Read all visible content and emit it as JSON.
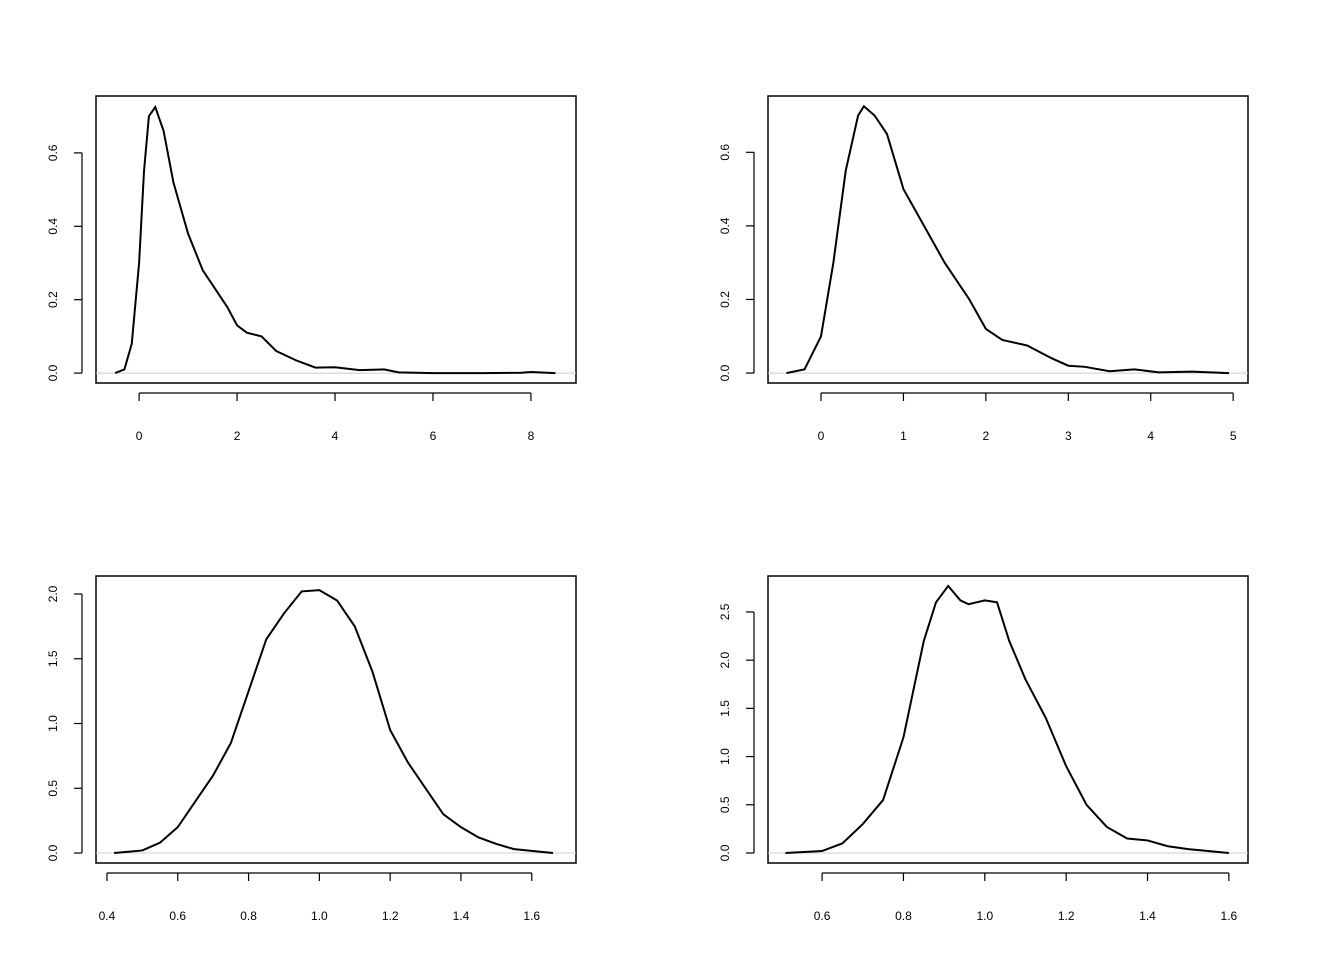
{
  "chart_data": [
    {
      "type": "line",
      "x": [
        -0.49,
        -0.3,
        -0.15,
        0,
        0.1,
        0.2,
        0.33,
        0.5,
        0.7,
        1.0,
        1.3,
        1.6,
        1.8,
        2.0,
        2.2,
        2.5,
        2.8,
        3.2,
        3.6,
        4.0,
        4.5,
        5.0,
        5.3,
        6,
        7,
        7.8,
        8.0,
        8.5
      ],
      "values": [
        0,
        0.01,
        0.08,
        0.3,
        0.55,
        0.7,
        0.725,
        0.66,
        0.52,
        0.38,
        0.28,
        0.22,
        0.18,
        0.13,
        0.11,
        0.1,
        0.06,
        0.035,
        0.015,
        0.016,
        0.008,
        0.01,
        0.002,
        0,
        0,
        0.001,
        0.003,
        0
      ],
      "xlim": [
        -0.88,
        8.92
      ],
      "ylim": [
        -0.027,
        0.755
      ],
      "xticks": [
        0,
        2,
        4,
        6,
        8
      ],
      "yticks": [
        {
          "value": 0,
          "label": "0.0"
        },
        0.2,
        0.4,
        0.6
      ],
      "color": "#000000"
    },
    {
      "type": "line",
      "x": [
        -0.42,
        -0.2,
        0,
        0.15,
        0.3,
        0.45,
        0.52,
        0.65,
        0.8,
        1.0,
        1.2,
        1.5,
        1.8,
        2.0,
        2.2,
        2.5,
        2.8,
        3.0,
        3.2,
        3.5,
        3.8,
        4.1,
        4.5,
        4.95
      ],
      "values": [
        0,
        0.01,
        0.1,
        0.3,
        0.55,
        0.7,
        0.725,
        0.7,
        0.65,
        0.5,
        0.42,
        0.3,
        0.2,
        0.12,
        0.09,
        0.075,
        0.04,
        0.02,
        0.017,
        0.005,
        0.01,
        0.002,
        0.004,
        0
      ],
      "xlim": [
        -0.643,
        5.18
      ],
      "ylim": [
        -0.027,
        0.753
      ],
      "xticks": [
        0,
        1,
        2,
        3,
        4,
        5
      ],
      "yticks": [
        {
          "value": 0,
          "label": "0.0"
        },
        0.2,
        0.4,
        0.6
      ],
      "color": "#000000"
    },
    {
      "type": "line",
      "x": [
        0.42,
        0.5,
        0.55,
        0.6,
        0.65,
        0.7,
        0.75,
        0.8,
        0.85,
        0.9,
        0.95,
        1.0,
        1.05,
        1.1,
        1.15,
        1.2,
        1.25,
        1.3,
        1.35,
        1.4,
        1.45,
        1.5,
        1.55,
        1.66
      ],
      "values": [
        0,
        0.02,
        0.08,
        0.2,
        0.4,
        0.6,
        0.85,
        1.25,
        1.65,
        1.85,
        2.02,
        2.03,
        1.95,
        1.75,
        1.4,
        0.95,
        0.7,
        0.5,
        0.3,
        0.2,
        0.12,
        0.07,
        0.03,
        0
      ],
      "xlim": [
        0.369,
        1.725
      ],
      "ylim": [
        -0.077,
        2.139
      ],
      "xticks": [
        0.4,
        0.6,
        0.8,
        {
          "value": 1,
          "label": "1.0"
        },
        1.2,
        1.4,
        1.6
      ],
      "yticks": [
        {
          "value": 0,
          "label": "0.0"
        },
        0.5,
        {
          "value": 1,
          "label": "1.0"
        },
        1.5,
        {
          "value": 2,
          "label": "2.0"
        }
      ],
      "color": "#000000"
    },
    {
      "type": "line",
      "x": [
        0.51,
        0.6,
        0.65,
        0.7,
        0.75,
        0.8,
        0.85,
        0.88,
        0.91,
        0.94,
        0.96,
        1.0,
        1.03,
        1.06,
        1.1,
        1.15,
        1.2,
        1.25,
        1.3,
        1.35,
        1.4,
        1.45,
        1.5,
        1.6
      ],
      "values": [
        0,
        0.02,
        0.1,
        0.3,
        0.55,
        1.2,
        2.2,
        2.6,
        2.77,
        2.62,
        2.58,
        2.62,
        2.6,
        2.2,
        1.8,
        1.4,
        0.9,
        0.5,
        0.27,
        0.15,
        0.13,
        0.07,
        0.04,
        0
      ],
      "xlim": [
        0.467,
        1.647
      ],
      "ylim": [
        -0.104,
        2.873
      ],
      "xticks": [
        0.6,
        0.8,
        {
          "value": 1,
          "label": "1.0"
        },
        1.2,
        1.4,
        1.6
      ],
      "yticks": [
        {
          "value": 0,
          "label": "0.0"
        },
        0.5,
        {
          "value": 1,
          "label": "1.0"
        },
        1.5,
        {
          "value": 2,
          "label": "2.0"
        },
        2.5
      ],
      "color": "#000000"
    }
  ]
}
